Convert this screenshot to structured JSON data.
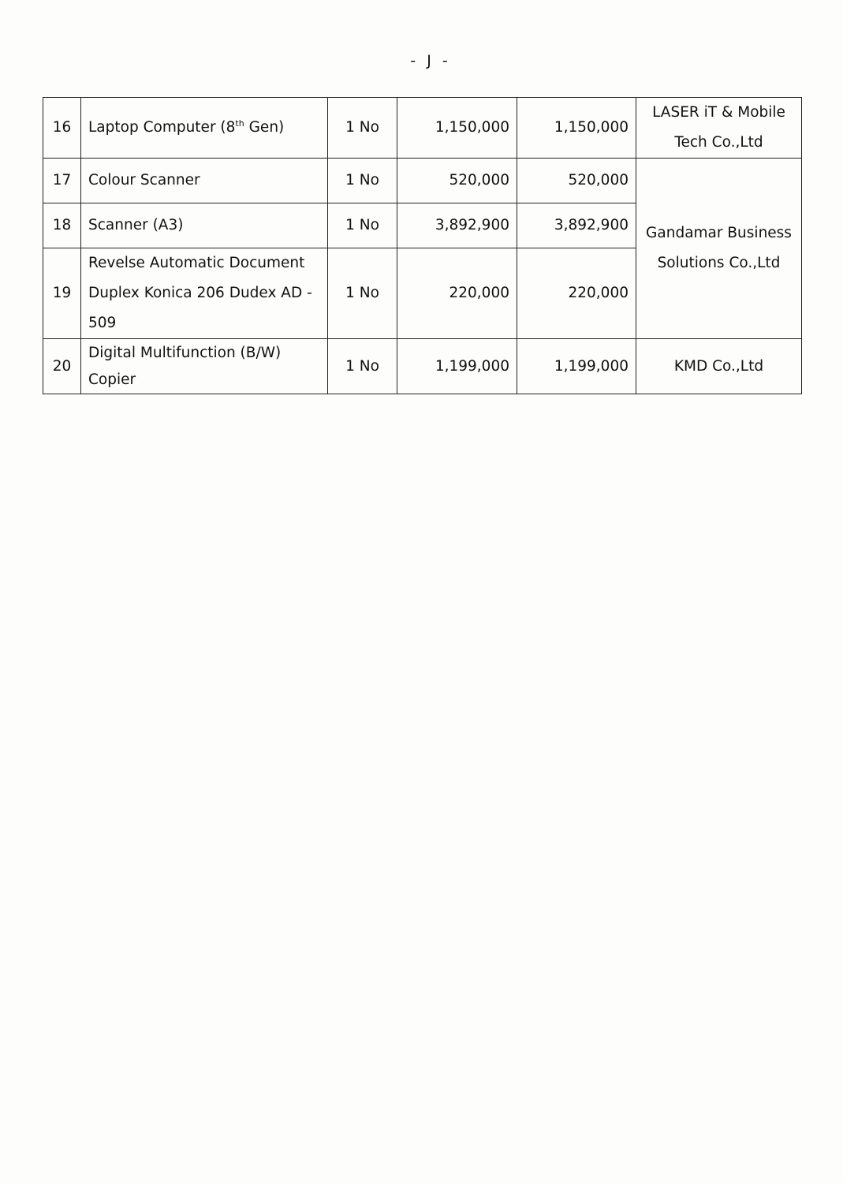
{
  "page_marker": "- J -",
  "rows": [
    {
      "no": "16",
      "desc_pre": "Laptop Computer (8",
      "desc_sup": "th",
      "desc_post": " Gen)",
      "qty": "1 No",
      "unit_price": "1,150,000",
      "total": "1,150,000",
      "supplier": "LASER iT & Mobile Tech Co.,Ltd"
    },
    {
      "no": "17",
      "desc": "Colour Scanner",
      "qty": "1 No",
      "unit_price": "520,000",
      "total": "520,000",
      "supplier": "Gandamar Business Solutions Co.,Ltd"
    },
    {
      "no": "18",
      "desc": "Scanner (A3)",
      "qty": "1 No",
      "unit_price": "3,892,900",
      "total": "3,892,900"
    },
    {
      "no": "19",
      "desc": "Revelse Automatic Document Duplex Konica 206 Dudex AD - 509",
      "qty": "1 No",
      "unit_price": "220,000",
      "total": "220,000"
    },
    {
      "no": "20",
      "desc": "Digital Multifunction (B/W) Copier",
      "qty": "1 No",
      "unit_price": "1,199,000",
      "total": "1,199,000",
      "supplier": "KMD Co.,Ltd"
    }
  ]
}
